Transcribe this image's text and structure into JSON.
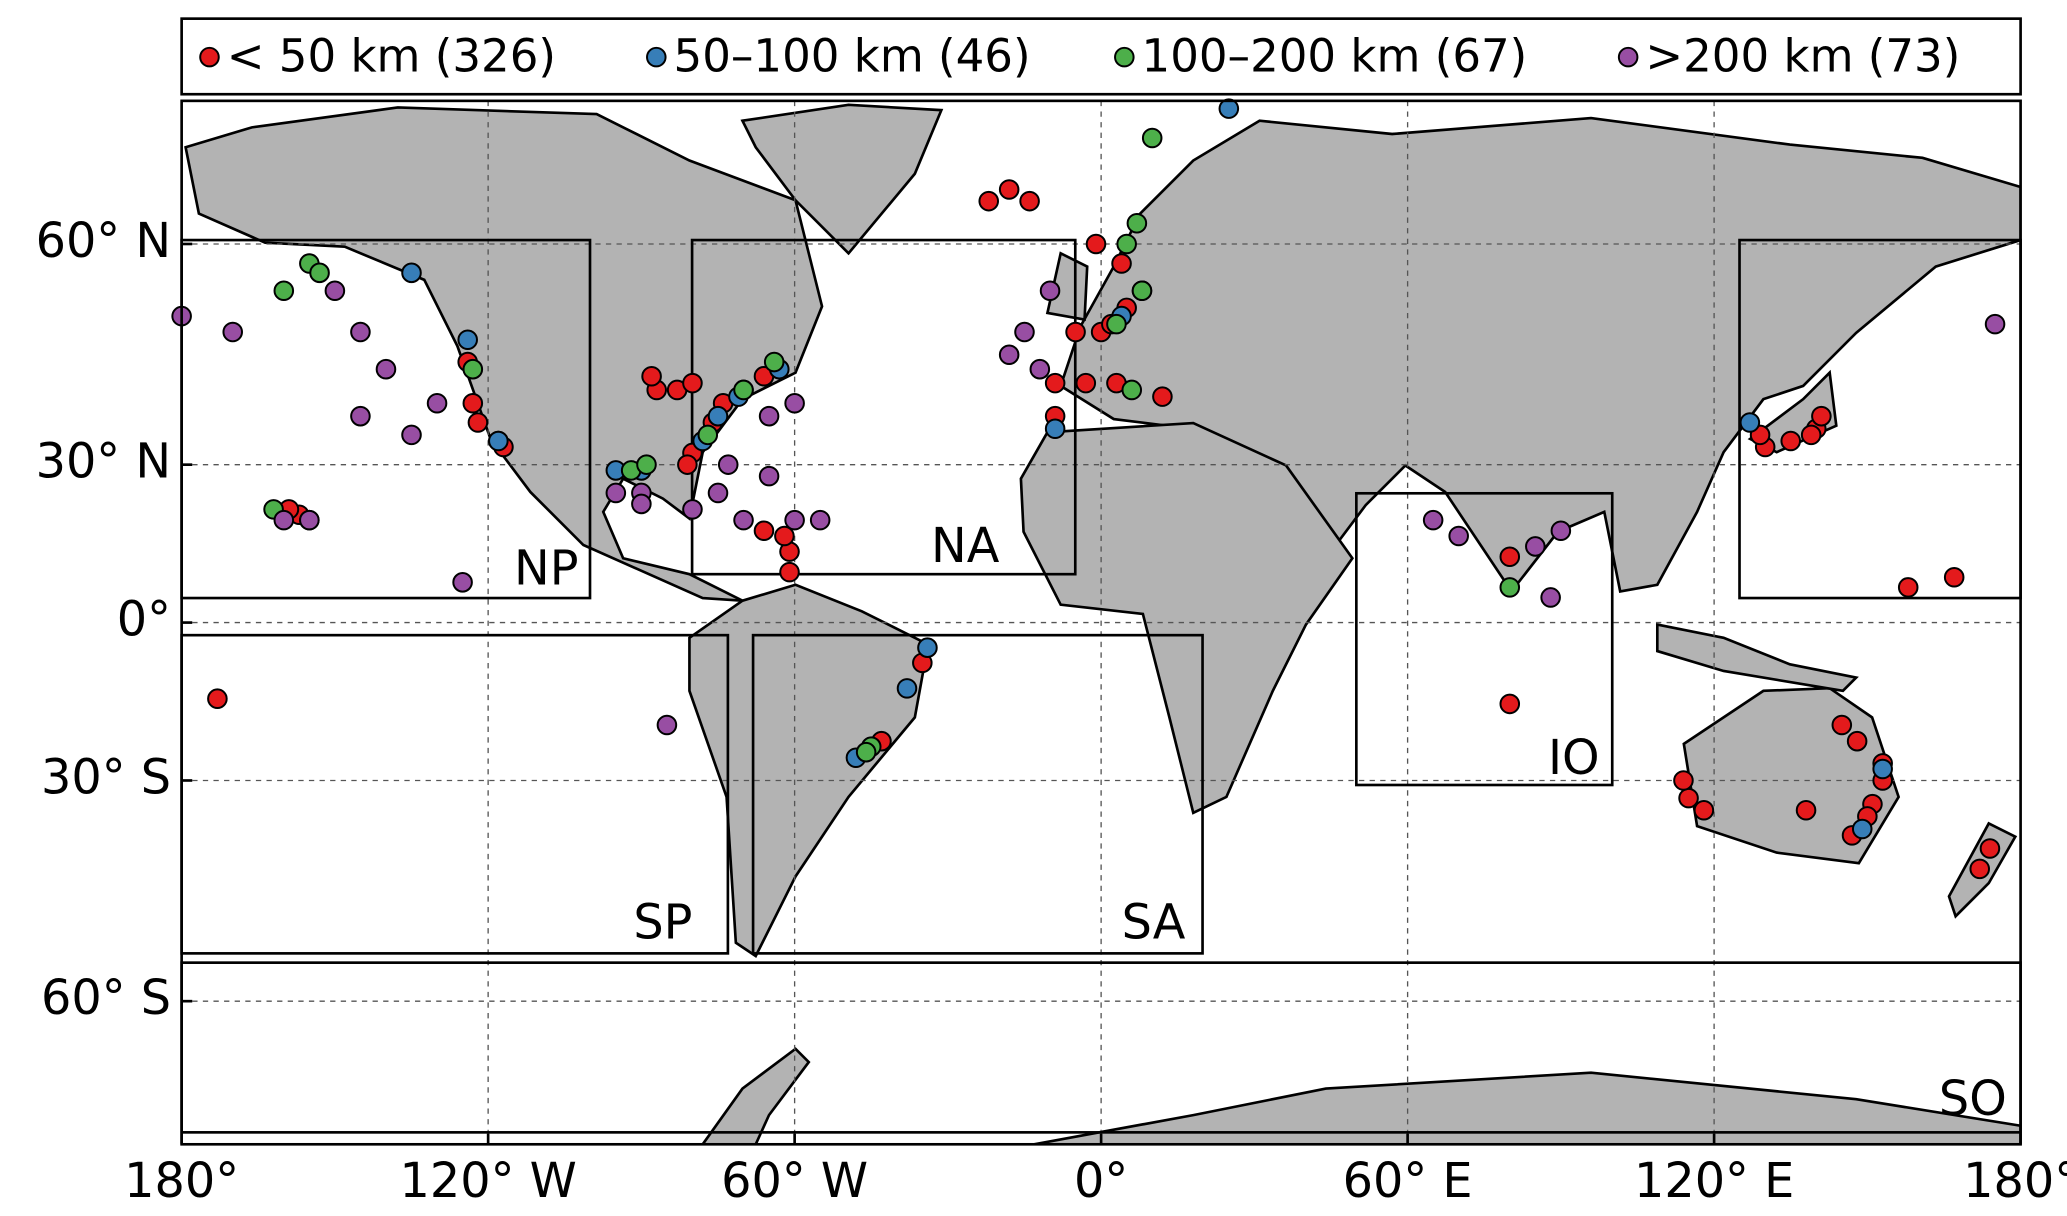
{
  "chart_data": {
    "type": "scatter-map",
    "legend_loc": "upper center",
    "xlim": [
      -180,
      180
    ],
    "ylim": [
      -71.5,
      71.5
    ],
    "grid": true,
    "xticks": [
      {
        "value": -180,
        "label": "180°"
      },
      {
        "value": -120,
        "label": "120° W"
      },
      {
        "value": -60,
        "label": "60° W"
      },
      {
        "value": 0,
        "label": "0°"
      },
      {
        "value": 60,
        "label": "60° E"
      },
      {
        "value": 120,
        "label": "120° E"
      },
      {
        "value": 180,
        "label": "180°"
      }
    ],
    "yticks": [
      {
        "value": 60,
        "label": "60° N"
      },
      {
        "value": 30,
        "label": "30° N"
      },
      {
        "value": 0,
        "label": "0°"
      },
      {
        "value": -30,
        "label": "30° S"
      },
      {
        "value": -60,
        "label": "60° S"
      }
    ],
    "regions": [
      "NP",
      "NA",
      "SP",
      "SA",
      "IO",
      "SO"
    ],
    "series": [
      {
        "name": "< 50 km (326)",
        "color": "#e41a1c",
        "x": [
          -74,
          -70,
          -76,
          -80,
          -81,
          -87,
          -83,
          -80,
          -88,
          -124,
          -123,
          -122,
          -118,
          -117,
          -157,
          -155,
          -159,
          -66,
          -66,
          -61,
          -5,
          0,
          2,
          -9,
          -3,
          3,
          -9,
          5,
          8,
          4,
          -1,
          -22,
          -18,
          -14,
          12,
          140,
          135,
          130,
          139,
          141,
          129,
          153,
          151,
          150,
          147,
          145,
          148,
          153,
          138,
          115,
          114,
          118,
          174,
          172,
          80,
          -35,
          -43,
          -173,
          167,
          158,
          80,
          -61,
          -62
        ],
        "y": [
          40,
          42,
          37,
          32,
          30,
          42,
          42,
          43,
          44,
          46,
          40,
          37,
          34,
          33,
          21,
          20,
          22,
          44,
          18,
          14,
          50,
          50,
          51,
          43,
          43,
          43,
          38,
          53,
          55,
          58,
          60,
          64,
          65,
          64,
          41,
          36,
          34,
          33,
          35,
          38,
          35,
          -27,
          -34,
          -36,
          -39,
          -20,
          -23,
          -30,
          -35,
          -33,
          -30,
          -35,
          -41,
          -44,
          13,
          -8,
          -23,
          -15,
          9,
          7,
          -16,
          10,
          17
        ]
      },
      {
        "name": "50–100 km (46)",
        "color": "#377eb8",
        "x": [
          -90,
          -95,
          -78,
          -71,
          -63,
          -124,
          -118,
          -135,
          -75,
          4,
          -9,
          -34,
          -38,
          -48,
          153,
          149,
          127,
          25
        ],
        "y": [
          29,
          29,
          34,
          41,
          45,
          49,
          34,
          57,
          38,
          52,
          36,
          -5,
          -13,
          -26,
          -28,
          -38,
          37,
          71
        ]
      },
      {
        "name": "100–200 km (67)",
        "color": "#4daf4a",
        "x": [
          -162,
          -160,
          -155,
          -153,
          -123,
          -77,
          -92,
          -89,
          -70,
          -64,
          5,
          7,
          8,
          3,
          10,
          6,
          80,
          -45,
          -46
        ],
        "y": [
          22,
          55,
          58,
          57,
          45,
          35,
          29,
          30,
          42,
          46,
          60,
          62,
          55,
          51,
          69,
          42,
          7,
          -24,
          -25
        ]
      },
      {
        "name": ">200 km (73)",
        "color": "#984ea3",
        "x": [
          -180,
          -170,
          -150,
          -145,
          -140,
          -130,
          -135,
          -145,
          -155,
          -160,
          -125,
          -85,
          -90,
          -80,
          -75,
          -70,
          -60,
          -55,
          -65,
          -73,
          -60,
          -65,
          -15,
          -12,
          -18,
          -10,
          65,
          70,
          85,
          90,
          88,
          175,
          -90,
          -95
        ],
        "y": [
          52,
          50,
          55,
          50,
          45,
          40,
          35,
          38,
          20,
          20,
          8,
          -20,
          25,
          22,
          25,
          20,
          20,
          20,
          28,
          30,
          40,
          38,
          50,
          45,
          47,
          55,
          20,
          17,
          15,
          18,
          5,
          51,
          23,
          25
        ]
      }
    ]
  }
}
